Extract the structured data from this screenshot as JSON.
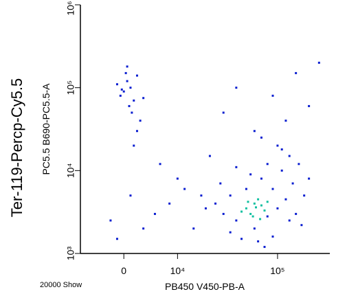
{
  "chart_data": {
    "type": "scatter",
    "title": "Ter-119-Percp-Cy5.5",
    "x_label": "PB450 V450-PB-A",
    "y_label": "PC5.5 B690-PC5.5-A",
    "footnote": "20000 Show",
    "xscale": "arcsinh",
    "yscale": "log",
    "xlim": [
      -7500,
      317000
    ],
    "ylim": [
      1000,
      1000000
    ],
    "xticks": [
      0,
      {
        "value": 10000,
        "label": "10⁴"
      },
      {
        "value": 100000,
        "label": "10⁵"
      }
    ],
    "yticks": [
      {
        "value": 1000,
        "label": "10³"
      },
      {
        "value": 10000,
        "label": "10⁴"
      },
      {
        "value": 100000,
        "label": "10⁵"
      },
      {
        "value": 1000000,
        "label": "10⁶"
      }
    ],
    "series": [
      {
        "color": "#0a1ed0",
        "x": [
          30000,
          40000,
          25000,
          60000,
          80000,
          100000,
          120000,
          90000,
          70000,
          110000,
          130000,
          100000,
          80000,
          50000,
          35000,
          20000,
          15000,
          12000,
          8000,
          5000,
          3000,
          45000,
          65000,
          90000,
          150000,
          180000,
          200000,
          140000,
          160000,
          55000,
          40000,
          28000,
          18000,
          10000,
          6000,
          22000,
          60000,
          120000,
          200000,
          90000,
          40000,
          150000,
          250000,
          30000,
          70000,
          110000,
          130000,
          170000,
          75000,
          35000,
          -2000,
          1000,
          -1000,
          0,
          500,
          -500,
          1000,
          1500,
          -1000,
          2000,
          800,
          300,
          -300,
          1200,
          2500,
          2000,
          1500,
          3000,
          500
        ],
        "y": [
          3000,
          2500,
          4000,
          2000,
          2800,
          3500,
          4500,
          6000,
          8000,
          10000,
          15000,
          20000,
          12000,
          6000,
          5000,
          3500,
          2000,
          6000,
          4000,
          3000,
          2000,
          1500,
          1400,
          1600,
          3000,
          5000,
          8000,
          7000,
          12000,
          9000,
          11000,
          7000,
          5000,
          8000,
          12000,
          15000,
          30000,
          40000,
          60000,
          80000,
          100000,
          150000,
          200000,
          50000,
          25000,
          18000,
          2500,
          2200,
          1200,
          1800,
          2500,
          5000,
          1500,
          90000,
          120000,
          80000,
          100000,
          70000,
          110000,
          140000,
          60000,
          150000,
          95000,
          50000,
          40000,
          30000,
          20000,
          75000,
          180000
        ]
      },
      {
        "color": "#10c0a0",
        "x": [
          50000,
          60000,
          70000,
          55000,
          65000,
          45000,
          75000,
          58000,
          80000,
          62000,
          52000,
          68000
        ],
        "y": [
          3500,
          4000,
          3800,
          3000,
          4500,
          3200,
          3300,
          2800,
          4200,
          3600,
          4200,
          2600
        ]
      }
    ]
  }
}
